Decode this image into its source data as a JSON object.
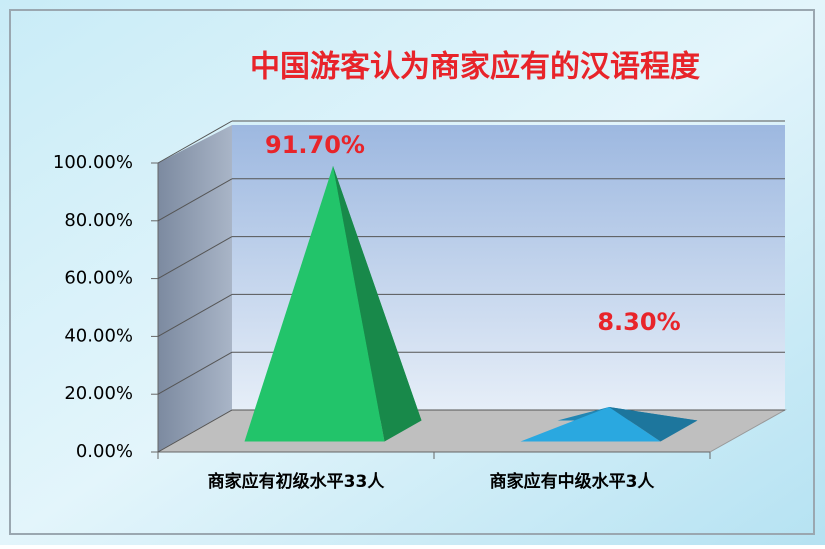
{
  "chart_data": {
    "type": "pyramid",
    "title": "中国游客认为商家应有的汉语程度",
    "categories": [
      "商家应有初级水平33人",
      "商家应有中级水平3人"
    ],
    "values": [
      91.7,
      8.3
    ],
    "value_labels": [
      "91.70%",
      "8.30%"
    ],
    "colors": [
      "#22c46a",
      "#2aa8e0"
    ],
    "ylim": [
      0,
      100
    ],
    "yticks": [
      {
        "value": 0,
        "label": "0.00%"
      },
      {
        "value": 20,
        "label": "20.00%"
      },
      {
        "value": 40,
        "label": "40.00%"
      },
      {
        "value": 60,
        "label": "60.00%"
      },
      {
        "value": 80,
        "label": "80.00%"
      },
      {
        "value": 100,
        "label": "100.00%"
      }
    ],
    "grid": true
  }
}
